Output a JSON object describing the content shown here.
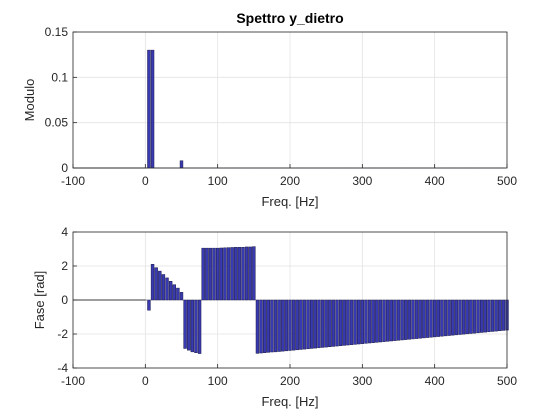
{
  "chart_data": [
    {
      "type": "bar",
      "title": "Spettro y_dietro",
      "xlabel": "Freq. [Hz]",
      "ylabel": "Modulo",
      "xlim": [
        -100,
        500
      ],
      "ylim": [
        0,
        0.15
      ],
      "xticks": [
        "-100",
        "0",
        "100",
        "200",
        "300",
        "400",
        "500"
      ],
      "yticks": [
        "0",
        "0.05",
        "0.1",
        "0.15"
      ],
      "grid": true,
      "bar_color": "#3a3ab0",
      "x_start": 0,
      "x_step": 5,
      "values": [
        0.0,
        0.13,
        0.13,
        0.0,
        0.0,
        0.0,
        0.0,
        0.0,
        0.0,
        0.0,
        0.008,
        0.0,
        0.0,
        0.0,
        0.0,
        0.0,
        0.0,
        0.0,
        0.0,
        0.0,
        0.0,
        0.0,
        0.0,
        0.0,
        0.0,
        0.0,
        0.0,
        0.0,
        0.0,
        0.0,
        0.0,
        0.0,
        0.0,
        0.0,
        0.0,
        0.0,
        0.0,
        0.0,
        0.0,
        0.0,
        0.0,
        0.0,
        0.0,
        0.0,
        0.0,
        0.0,
        0.0,
        0.0,
        0.0,
        0.0,
        0.0,
        0.0,
        0.0,
        0.0,
        0.0,
        0.0,
        0.0,
        0.0,
        0.0,
        0.0,
        0.0,
        0.0,
        0.0,
        0.0,
        0.0,
        0.0,
        0.0,
        0.0,
        0.0,
        0.0,
        0.0,
        0.0,
        0.0,
        0.0,
        0.0,
        0.0,
        0.0,
        0.0,
        0.0,
        0.0,
        0.0,
        0.0,
        0.0,
        0.0,
        0.0,
        0.0,
        0.0,
        0.0,
        0.0,
        0.0,
        0.0,
        0.0,
        0.0,
        0.0,
        0.0,
        0.0,
        0.0,
        0.0,
        0.0,
        0.0
      ]
    },
    {
      "type": "bar",
      "title": "",
      "xlabel": "Freq. [Hz]",
      "ylabel": "Fase [rad]",
      "xlim": [
        -100,
        500
      ],
      "ylim": [
        -4,
        4
      ],
      "xticks": [
        "-100",
        "0",
        "100",
        "200",
        "300",
        "400",
        "500"
      ],
      "yticks": [
        "-4",
        "-2",
        "0",
        "2",
        "4"
      ],
      "grid": true,
      "bar_color": "#3a3ab0",
      "x_start": 0,
      "x_step": 5,
      "values": [
        0.0,
        -0.6,
        2.1,
        1.9,
        1.7,
        1.5,
        1.3,
        1.1,
        0.9,
        0.7,
        0.45,
        -2.85,
        -2.95,
        -3.05,
        -3.1,
        -3.15,
        3.05,
        3.05,
        3.05,
        3.05,
        3.05,
        3.06,
        3.07,
        3.08,
        3.09,
        3.1,
        3.1,
        3.1,
        3.12,
        3.12,
        3.14,
        -3.14,
        -3.12,
        -3.1,
        -3.08,
        -3.06,
        -3.05,
        -3.03,
        -3.01,
        -2.99,
        -2.97,
        -2.95,
        -2.93,
        -2.91,
        -2.89,
        -2.87,
        -2.85,
        -2.83,
        -2.81,
        -2.79,
        -2.77,
        -2.75,
        -2.73,
        -2.71,
        -2.69,
        -2.67,
        -2.65,
        -2.63,
        -2.61,
        -2.59,
        -2.57,
        -2.55,
        -2.53,
        -2.51,
        -2.49,
        -2.47,
        -2.45,
        -2.43,
        -2.41,
        -2.39,
        -2.37,
        -2.35,
        -2.33,
        -2.31,
        -2.29,
        -2.27,
        -2.25,
        -2.23,
        -2.21,
        -2.19,
        -2.17,
        -2.15,
        -2.13,
        -2.11,
        -2.09,
        -2.07,
        -2.05,
        -2.03,
        -2.01,
        -1.99,
        -1.97,
        -1.95,
        -1.93,
        -1.91,
        -1.89,
        -1.87,
        -1.85,
        -1.83,
        -1.81,
        -1.79,
        -1.77
      ]
    }
  ]
}
